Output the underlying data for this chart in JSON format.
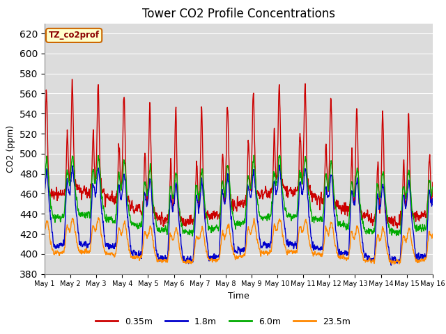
{
  "title": "Tower CO2 Profile Concentrations",
  "xlabel": "Time",
  "ylabel": "CO2 (ppm)",
  "ylim": [
    380,
    630
  ],
  "yticks": [
    380,
    400,
    420,
    440,
    460,
    480,
    500,
    520,
    540,
    560,
    580,
    600,
    620
  ],
  "background_color": "#dcdcdc",
  "fig_bg": "#ffffff",
  "label_box_text": "TZ_co2prof",
  "label_box_facecolor": "#ffffcc",
  "label_box_edgecolor": "#cc6600",
  "lines": {
    "0.35m": {
      "color": "#cc0000",
      "lw": 1.0
    },
    "1.8m": {
      "color": "#0000cc",
      "lw": 1.0
    },
    "6.0m": {
      "color": "#00aa00",
      "lw": 1.0
    },
    "23.5m": {
      "color": "#ff8800",
      "lw": 1.0
    }
  },
  "days": 15,
  "pts_per_day": 144
}
